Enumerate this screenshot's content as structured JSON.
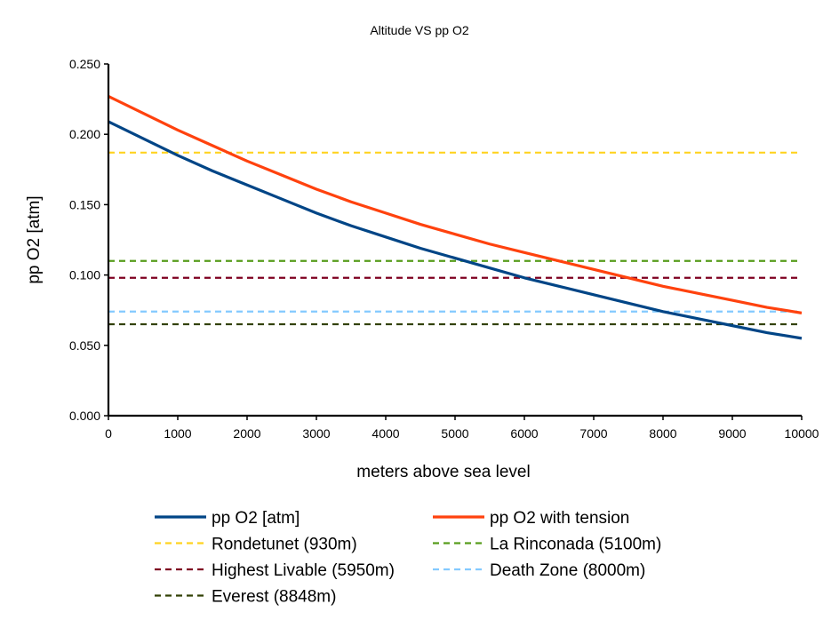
{
  "chart_data": {
    "type": "line",
    "title": "Altitude VS pp O2",
    "xlabel": "meters above sea level",
    "ylabel": "pp O2 [atm]",
    "xlim": [
      0,
      10000
    ],
    "ylim": [
      0,
      0.25
    ],
    "x_ticks": [
      "0",
      "1000",
      "2000",
      "3000",
      "4000",
      "5000",
      "6000",
      "7000",
      "8000",
      "9000",
      "10000"
    ],
    "y_ticks": [
      "0.000",
      "0.050",
      "0.100",
      "0.150",
      "0.200",
      "0.250"
    ],
    "grid": false,
    "legend_position": "bottom",
    "x": [
      0,
      500,
      1000,
      1500,
      2000,
      2500,
      3000,
      3500,
      4000,
      4500,
      5000,
      5500,
      6000,
      6500,
      7000,
      7500,
      8000,
      8500,
      9000,
      9500,
      10000
    ],
    "series": [
      {
        "name": "pp O2 [atm]",
        "color": "#004586",
        "style": "solid",
        "values": [
          0.209,
          0.197,
          0.185,
          0.174,
          0.164,
          0.154,
          0.144,
          0.135,
          0.127,
          0.119,
          0.112,
          0.105,
          0.098,
          0.092,
          0.086,
          0.08,
          0.074,
          0.069,
          0.064,
          0.059,
          0.055
        ]
      },
      {
        "name": "pp O2 with tension",
        "color": "#ff420e",
        "style": "solid",
        "values": [
          0.227,
          0.215,
          0.203,
          0.192,
          0.181,
          0.171,
          0.161,
          0.152,
          0.144,
          0.136,
          0.129,
          0.122,
          0.116,
          0.11,
          0.104,
          0.098,
          0.092,
          0.087,
          0.082,
          0.077,
          0.073
        ]
      },
      {
        "name": "Rondetunet (930m)",
        "color": "#ffd320",
        "style": "dashed",
        "constant": 0.187
      },
      {
        "name": "La Rinconada (5100m)",
        "color": "#579d1c",
        "style": "dashed",
        "constant": 0.11
      },
      {
        "name": "Highest Livable (5950m)",
        "color": "#7e0021",
        "style": "dashed",
        "constant": 0.098
      },
      {
        "name": "Death Zone (8000m)",
        "color": "#83caff",
        "style": "dashed",
        "constant": 0.074
      },
      {
        "name": "Everest (8848m)",
        "color": "#314004",
        "style": "dashed",
        "constant": 0.065
      }
    ]
  }
}
